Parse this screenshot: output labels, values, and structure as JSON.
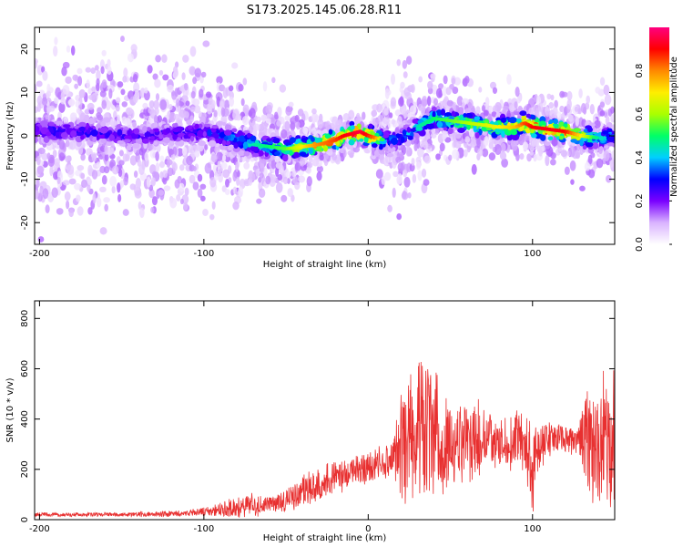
{
  "figure": {
    "title": "S173.2025.145.06.28.R11"
  },
  "chart_data": [
    {
      "type": "heatmap",
      "xlabel": "Height of straight line (km)",
      "ylabel": "Frequency (Hz)",
      "xlim": [
        -203,
        150
      ],
      "ylim": [
        -25,
        25
      ],
      "xticks": [
        -200,
        -100,
        0,
        100
      ],
      "yticks": [
        -20,
        -10,
        0,
        10,
        20
      ],
      "colorbar": {
        "label": "Normalized spectral amplitude",
        "range": [
          0,
          1
        ],
        "ticks": [
          "0.0",
          "0.2",
          "0.4",
          "0.6",
          "0.8"
        ],
        "colormap": [
          "#ffffff",
          "#d9b3ff",
          "#7a00ff",
          "#0000ff",
          "#00cfff",
          "#00ff66",
          "#aaff00",
          "#ffee00",
          "#ff8800",
          "#ff0000",
          "#ff0080"
        ]
      },
      "ridge": {
        "x": [
          -200,
          -180,
          -160,
          -140,
          -120,
          -100,
          -90,
          -80,
          -70,
          -60,
          -50,
          -40,
          -30,
          -20,
          -15,
          -10,
          -5,
          0,
          5,
          10,
          20,
          30,
          40,
          50,
          60,
          70,
          80,
          90,
          95,
          100,
          110,
          120,
          130,
          140,
          150
        ],
        "freq": [
          1,
          1,
          0.5,
          0,
          0.5,
          1,
          0,
          -1,
          -2,
          -2.5,
          -3,
          -2.5,
          -2,
          -1,
          0,
          0.5,
          1,
          0,
          -0.5,
          -1,
          -0.5,
          2,
          4,
          3.5,
          3,
          2.5,
          2,
          2,
          3,
          2,
          1.5,
          1,
          0,
          -0.5,
          0
        ],
        "peak_amplitude": [
          0.3,
          0.28,
          0.28,
          0.25,
          0.27,
          0.3,
          0.35,
          0.4,
          0.45,
          0.5,
          0.55,
          0.7,
          0.8,
          0.85,
          0.9,
          0.92,
          0.95,
          0.88,
          0.8,
          0.4,
          0.35,
          0.45,
          0.5,
          0.55,
          0.6,
          0.65,
          0.7,
          0.75,
          0.85,
          0.9,
          0.92,
          0.9,
          0.7,
          0.45,
          0.4
        ]
      },
      "spread_hz": {
        "x": [
          -200,
          -100,
          -50,
          -20,
          0,
          20,
          40,
          80,
          120,
          150
        ],
        "value": [
          22,
          20,
          12,
          6,
          4,
          20,
          12,
          8,
          10,
          12
        ]
      }
    },
    {
      "type": "line",
      "xlabel": "Height of straight line (km)",
      "ylabel": "SNR (10 * v/v)",
      "xlim": [
        -203,
        150
      ],
      "ylim": [
        0,
        870
      ],
      "xticks": [
        -200,
        -100,
        0,
        100
      ],
      "yticks": [
        0,
        200,
        400,
        600,
        800
      ],
      "line_color": "#e83030",
      "envelope": {
        "x": [
          -203,
          -150,
          -110,
          -95,
          -80,
          -70,
          -60,
          -50,
          -40,
          -30,
          -20,
          -10,
          0,
          10,
          15,
          20,
          25,
          30,
          35,
          40,
          45,
          50,
          55,
          60,
          65,
          70,
          80,
          90,
          95,
          98,
          100,
          102,
          110,
          120,
          128,
          132,
          140,
          145,
          150
        ],
        "mean": [
          20,
          20,
          25,
          35,
          50,
          60,
          60,
          80,
          110,
          140,
          170,
          190,
          210,
          230,
          250,
          300,
          330,
          360,
          380,
          350,
          320,
          300,
          300,
          310,
          320,
          320,
          320,
          320,
          310,
          250,
          150,
          280,
          320,
          320,
          310,
          300,
          320,
          310,
          300
        ],
        "amplitude": [
          8,
          8,
          12,
          20,
          40,
          40,
          30,
          45,
          60,
          65,
          60,
          55,
          55,
          60,
          70,
          200,
          260,
          280,
          300,
          270,
          200,
          150,
          140,
          160,
          150,
          110,
          100,
          110,
          130,
          150,
          150,
          100,
          60,
          50,
          60,
          200,
          220,
          260,
          280
        ]
      }
    }
  ]
}
